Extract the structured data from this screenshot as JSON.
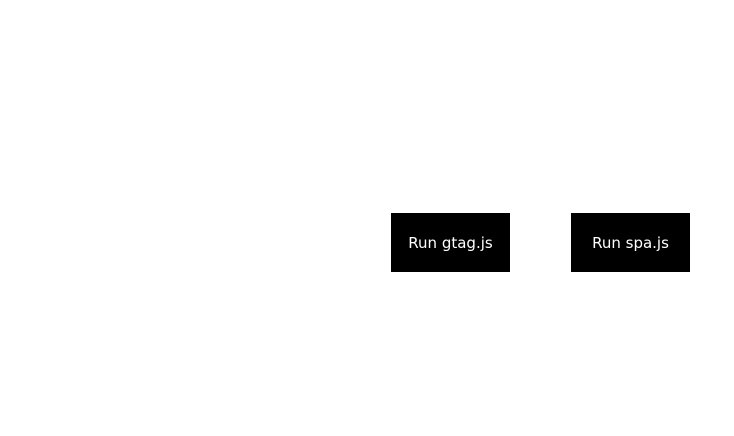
{
  "buttons": {
    "gtag_label": "Run gtag.js",
    "spa_label": "Run spa.js"
  },
  "colors": {
    "background": "#ffffff",
    "button_bg": "#000000",
    "button_text": "#ffffff"
  }
}
